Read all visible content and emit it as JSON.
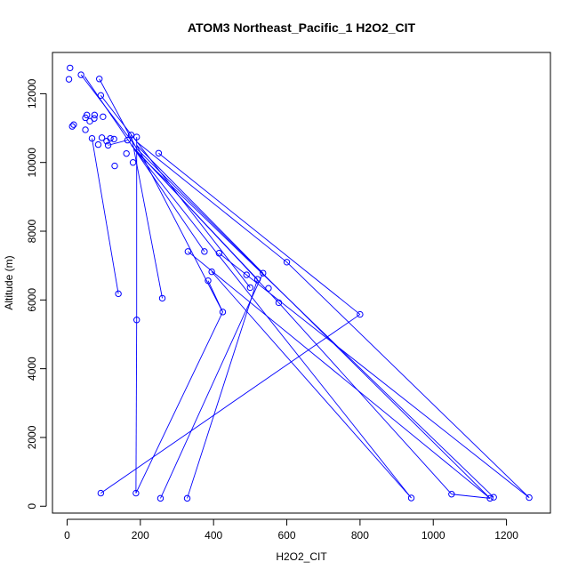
{
  "chart_data": {
    "type": "scatter",
    "title": "ATOM3 Northeast_Pacific_1 H2O2_CIT",
    "xlabel": "H2O2_CIT",
    "ylabel": "Altitude (m)",
    "xlim": [
      -40,
      1320
    ],
    "ylim": [
      -200,
      13200
    ],
    "xticks": [
      0,
      200,
      400,
      600,
      800,
      1000,
      1200
    ],
    "yticks": [
      0,
      2000,
      4000,
      6000,
      8000,
      10000,
      12000
    ],
    "grid": false,
    "legend": "none",
    "series": [
      {
        "color": "#0000ff",
        "marker": "open-circle",
        "connected": true,
        "points": [
          [
            8,
            12750
          ],
          [
            5,
            12420
          ],
          [
            18,
            11100
          ],
          [
            14,
            11050
          ],
          [
            38,
            12550
          ],
          [
            50,
            11300
          ],
          [
            54,
            11380
          ],
          [
            50,
            10950
          ],
          [
            62,
            11200
          ],
          [
            74,
            11280
          ],
          [
            75,
            11380
          ],
          [
            68,
            10700
          ],
          [
            85,
            10520
          ],
          [
            88,
            12430
          ],
          [
            92,
            11950
          ],
          [
            95,
            10720
          ],
          [
            98,
            11330
          ],
          [
            108,
            10620
          ],
          [
            112,
            10500
          ],
          [
            118,
            10700
          ],
          [
            128,
            10680
          ],
          [
            130,
            9900
          ],
          [
            140,
            6180
          ],
          [
            162,
            10260
          ],
          [
            165,
            10650
          ],
          [
            175,
            10800
          ],
          [
            180,
            10000
          ],
          [
            190,
            10740
          ],
          [
            260,
            6050
          ],
          [
            250,
            10270
          ],
          [
            190,
            5420
          ],
          [
            188,
            380
          ],
          [
            92,
            380
          ],
          [
            800,
            5580
          ],
          [
            600,
            7100
          ],
          [
            330,
            7410
          ],
          [
            375,
            7410
          ],
          [
            415,
            7360
          ],
          [
            385,
            6560
          ],
          [
            395,
            6820
          ],
          [
            425,
            5650
          ],
          [
            255,
            230
          ],
          [
            500,
            6360
          ],
          [
            490,
            6730
          ],
          [
            520,
            6600
          ],
          [
            535,
            6780
          ],
          [
            550,
            6340
          ],
          [
            578,
            5920
          ],
          [
            328,
            230
          ],
          [
            940,
            240
          ],
          [
            1050,
            350
          ],
          [
            1155,
            230
          ],
          [
            1165,
            260
          ],
          [
            1262,
            250
          ]
        ],
        "segments": [
          [
            [
              38,
              12550
            ],
            [
              185,
              10500
            ]
          ],
          [
            [
              88,
              12430
            ],
            [
              190,
              10400
            ]
          ],
          [
            [
              92,
              11950
            ],
            [
              500,
              6360
            ]
          ],
          [
            [
              68,
              10700
            ],
            [
              140,
              6180
            ]
          ],
          [
            [
              112,
              10500
            ],
            [
              165,
              10650
            ]
          ],
          [
            [
              175,
              10800
            ],
            [
              260,
              6050
            ]
          ],
          [
            [
              190,
              10740
            ],
            [
              190,
              5420
            ]
          ],
          [
            [
              190,
              5420
            ],
            [
              188,
              380
            ]
          ],
          [
            [
              190,
              10500
            ],
            [
              425,
              5650
            ]
          ],
          [
            [
              250,
              10270
            ],
            [
              800,
              5580
            ]
          ],
          [
            [
              800,
              5580
            ],
            [
              92,
              380
            ]
          ],
          [
            [
              190,
              10600
            ],
            [
              600,
              7100
            ]
          ],
          [
            [
              600,
              7100
            ],
            [
              1262,
              250
            ]
          ],
          [
            [
              190,
              10500
            ],
            [
              535,
              6780
            ]
          ],
          [
            [
              535,
              6780
            ],
            [
              255,
              230
            ]
          ],
          [
            [
              180,
              10450
            ],
            [
              578,
              5920
            ]
          ],
          [
            [
              578,
              5920
            ],
            [
              1050,
              350
            ]
          ],
          [
            [
              175,
              10500
            ],
            [
              520,
              6600
            ]
          ],
          [
            [
              520,
              6600
            ],
            [
              328,
              230
            ]
          ],
          [
            [
              190,
              10400
            ],
            [
              1155,
              230
            ]
          ],
          [
            [
              1155,
              230
            ],
            [
              1050,
              350
            ]
          ],
          [
            [
              185,
              10350
            ],
            [
              1165,
              260
            ]
          ],
          [
            [
              190,
              10300
            ],
            [
              940,
              240
            ]
          ],
          [
            [
              48,
              12500
            ],
            [
              375,
              7410
            ]
          ],
          [
            [
              330,
              7410
            ],
            [
              1155,
              230
            ]
          ],
          [
            [
              415,
              7360
            ],
            [
              1262,
              250
            ]
          ],
          [
            [
              395,
              6820
            ],
            [
              940,
              240
            ]
          ],
          [
            [
              425,
              5650
            ],
            [
              188,
              380
            ]
          ],
          [
            [
              385,
              6560
            ],
            [
              425,
              5650
            ]
          ]
        ]
      }
    ]
  }
}
